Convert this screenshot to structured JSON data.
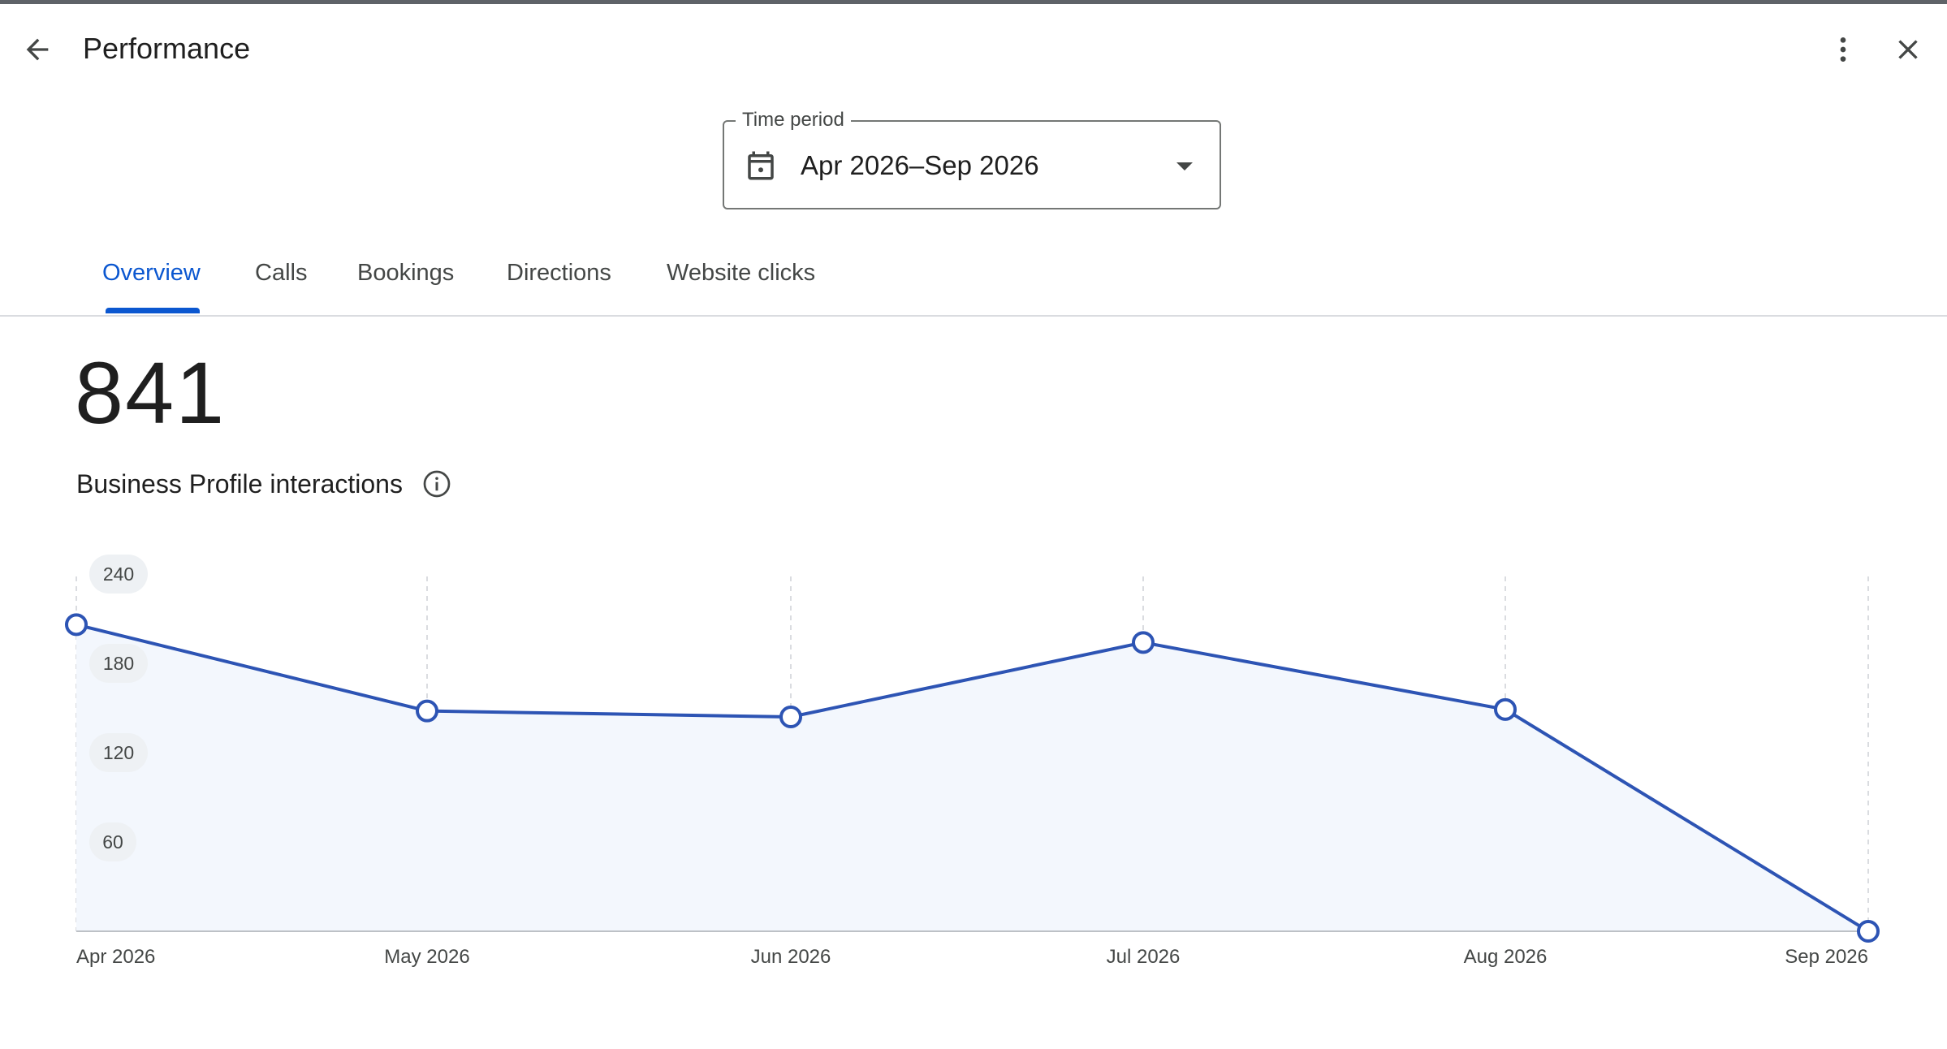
{
  "header": {
    "title": "Performance",
    "back_icon": "arrow-back-icon",
    "more_icon": "more-vert-icon",
    "close_icon": "close-icon"
  },
  "time_period": {
    "label": "Time period",
    "value": "Apr 2026–Sep 2026",
    "icon": "calendar-icon"
  },
  "tabs": [
    {
      "label": "Overview",
      "active": true
    },
    {
      "label": "Calls",
      "active": false
    },
    {
      "label": "Bookings",
      "active": false
    },
    {
      "label": "Directions",
      "active": false
    },
    {
      "label": "Website clicks",
      "active": false
    }
  ],
  "summary": {
    "total": "841",
    "label": "Business Profile interactions",
    "info_icon": "info-icon"
  },
  "colors": {
    "accent": "#0b57d0",
    "line": "#2d54b4",
    "area": "#f3f7fd"
  },
  "chart_data": {
    "type": "area",
    "x": [
      "Apr 2026",
      "May 2026",
      "Jun 2026",
      "Jul 2026",
      "Aug 2026",
      "Sep 2026"
    ],
    "series": [
      {
        "values": [
          206,
          148,
          144,
          194,
          149,
          0
        ]
      }
    ],
    "yticks": [
      60,
      120,
      180,
      240
    ],
    "ylim": [
      0,
      240
    ],
    "grid": "vertical dashed"
  }
}
